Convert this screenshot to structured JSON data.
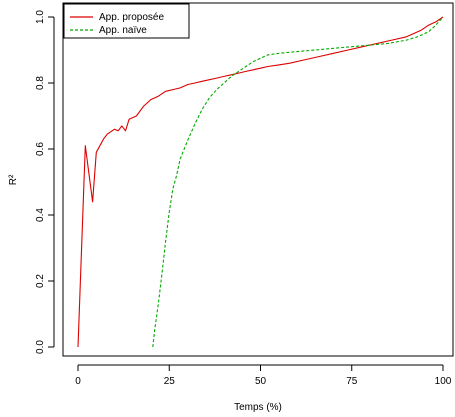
{
  "chart_data": {
    "type": "line",
    "xlabel": "Temps (%)",
    "ylabel": "R²",
    "xlim": [
      0,
      100
    ],
    "ylim": [
      0,
      1
    ],
    "x_ticks": [
      0,
      25,
      50,
      75,
      100
    ],
    "x_tick_labels": [
      "0",
      "25",
      "50",
      "75",
      "100"
    ],
    "y_ticks": [
      0,
      0.2,
      0.4,
      0.6,
      0.8,
      1
    ],
    "y_tick_labels": [
      "0.0",
      "0.2",
      "0.4",
      "0.6",
      "0.8",
      "1.0"
    ],
    "grid": false,
    "legend_position": "top-left",
    "series": [
      {
        "name": "App. proposée",
        "color": "#dd0000",
        "style": "solid",
        "x": [
          0,
          2,
          4,
          5,
          6,
          7,
          8,
          10,
          11,
          12,
          13,
          14,
          16,
          18,
          20,
          22,
          24,
          26,
          28,
          30,
          32,
          34,
          36,
          38,
          40,
          42,
          44,
          46,
          48,
          50,
          52,
          55,
          58,
          62,
          66,
          70,
          74,
          78,
          82,
          86,
          90,
          92,
          94,
          96,
          98,
          100
        ],
        "y": [
          0.0,
          0.61,
          0.44,
          0.59,
          0.61,
          0.63,
          0.645,
          0.66,
          0.655,
          0.67,
          0.655,
          0.69,
          0.7,
          0.73,
          0.75,
          0.76,
          0.775,
          0.78,
          0.785,
          0.795,
          0.8,
          0.805,
          0.81,
          0.815,
          0.82,
          0.825,
          0.83,
          0.835,
          0.84,
          0.845,
          0.85,
          0.855,
          0.86,
          0.87,
          0.88,
          0.89,
          0.9,
          0.91,
          0.92,
          0.93,
          0.94,
          0.95,
          0.96,
          0.975,
          0.985,
          1.0
        ]
      },
      {
        "name": "App. naïve",
        "color": "#00aa00",
        "style": "dashed",
        "x": [
          20.5,
          21,
          22,
          23,
          24,
          25,
          26,
          27,
          28,
          30,
          32,
          34,
          36,
          38,
          40,
          42,
          44,
          46,
          48,
          50,
          52,
          55,
          60,
          65,
          70,
          75,
          80,
          85,
          90,
          93,
          96,
          98,
          100
        ],
        "y": [
          0.0,
          0.05,
          0.13,
          0.22,
          0.32,
          0.41,
          0.48,
          0.52,
          0.57,
          0.625,
          0.675,
          0.72,
          0.755,
          0.78,
          0.8,
          0.82,
          0.835,
          0.85,
          0.865,
          0.875,
          0.885,
          0.89,
          0.895,
          0.9,
          0.905,
          0.91,
          0.915,
          0.92,
          0.93,
          0.94,
          0.955,
          0.975,
          1.0
        ]
      }
    ]
  }
}
